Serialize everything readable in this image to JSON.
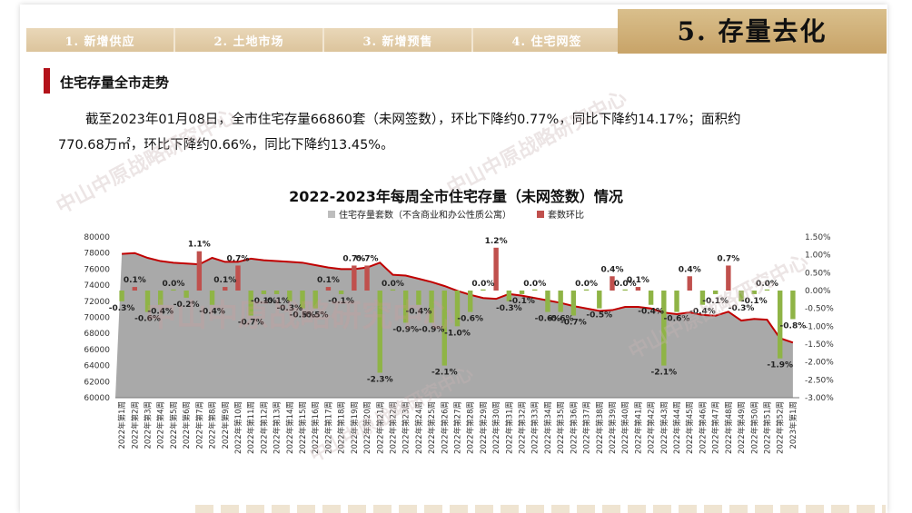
{
  "nav": {
    "tabs": [
      "1. 新增供应",
      "2. 土地市场",
      "3. 新增预售",
      "4. 住宅网签"
    ],
    "active": "5. 存量去化"
  },
  "section_title": "住宅存量全市走势",
  "summary_line1": "截至2023年01月08日，全市住宅存量66860套（未网签数），环比下降约0.77%，同比下降约14.17%；面积约",
  "summary_line2": "770.68万㎡，环比下降约0.66%，同比下降约13.45%。",
  "watermark_text": "中山中原战略研究中心",
  "colors": {
    "bar": "#8fb446",
    "marker": "#c0504d",
    "area": "#a9a9a9",
    "line": "#c00000",
    "accent": "#b3121a"
  },
  "chart_data": {
    "type": "bar",
    "title": "2022-2023年每周全市住宅存量（未网签数）情况",
    "legend": [
      "住宅存量套数（不含商业和办公性质公寓）",
      "套数环比"
    ],
    "y_left": {
      "min": 60000,
      "max": 80000,
      "step": 2000,
      "ticks": [
        "60000",
        "62000",
        "64000",
        "66000",
        "68000",
        "70000",
        "72000",
        "74000",
        "76000",
        "78000",
        "80000"
      ]
    },
    "y_right": {
      "min": -3.0,
      "max": 1.5,
      "step": 0.5,
      "ticks": [
        "-3.00%",
        "-2.50%",
        "-2.00%",
        "-1.50%",
        "-1.00%",
        "-0.50%",
        "0.00%",
        "0.50%",
        "1.00%",
        "1.50%"
      ]
    },
    "categories": [
      "2022年第1周",
      "2022年第2周",
      "2022年第3周",
      "2022年第4周",
      "2022年第5周",
      "2022年第6周",
      "2022年第7周",
      "2022年第8周",
      "2022年第9周",
      "2022年第10周",
      "2022年第11周",
      "2022年第12周",
      "2022年第13周",
      "2022年第14周",
      "2022年第15周",
      "2022年第16周",
      "2022年第17周",
      "2022年第18周",
      "2022年第19周",
      "2022年第20周",
      "2022年第21周",
      "2022年第22周",
      "2022年第23周",
      "2022年第24周",
      "2022年第25周",
      "2022年第26周",
      "2022年第27周",
      "2022年第28周",
      "2022年第29周",
      "2022年第30周",
      "2022年第31周",
      "2022年第32周",
      "2022年第33周",
      "2022年第34周",
      "2022年第35周",
      "2022年第36周",
      "2022年第37周",
      "2022年第38周",
      "2022年第39周",
      "2022年第40周",
      "2022年第41周",
      "2022年第42周",
      "2022年第43周",
      "2022年第44周",
      "2022年第45周",
      "2022年第46周",
      "2022年第47周",
      "2022年第48周",
      "2022年第49周",
      "2022年第50周",
      "2022年第51周",
      "2022年第52周",
      "2023年第1周"
    ],
    "stock": [
      77900,
      78000,
      77400,
      77000,
      76800,
      76700,
      76600,
      77400,
      76900,
      76900,
      77300,
      77100,
      77000,
      76900,
      76800,
      76500,
      76200,
      76000,
      76000,
      76200,
      76800,
      75300,
      75200,
      74800,
      74400,
      73900,
      73300,
      72800,
      72400,
      72300,
      72900,
      72700,
      72400,
      72100,
      71800,
      71400,
      71100,
      70800,
      70900,
      71300,
      71300,
      71100,
      70600,
      70400,
      70600,
      70300,
      70200,
      70700,
      69600,
      69800,
      69700,
      67400,
      66860
    ],
    "mom_pct": [
      -0.3,
      0.1,
      -0.6,
      -0.4,
      0.0,
      -0.2,
      1.1,
      -0.4,
      0.1,
      0.7,
      -0.7,
      -0.1,
      -0.1,
      -0.3,
      -0.5,
      -0.5,
      0.1,
      -0.1,
      0.7,
      0.7,
      -2.3,
      0.0,
      -0.9,
      -0.4,
      -0.9,
      -2.1,
      -1.0,
      -0.6,
      0.0,
      1.2,
      -0.3,
      -0.1,
      0.0,
      -0.6,
      -0.6,
      -0.7,
      0.0,
      -0.5,
      0.4,
      0.0,
      0.1,
      -0.4,
      -2.1,
      -0.6,
      0.4,
      -0.4,
      -0.1,
      0.7,
      -0.3,
      -0.1,
      0.0,
      -1.9,
      -0.8
    ],
    "mom_labels": [
      "-0.3%",
      "0.1%",
      "-0.6%",
      "-0.4%",
      "0.0%",
      "-0.2%",
      "1.1%",
      "-0.4%",
      "0.1%",
      "0.7%",
      "-0.7%",
      "-0.1%",
      "-0.1%",
      "-0.3%",
      "-0.5%",
      "-0.5%",
      "0.1%",
      "-0.1%",
      "0.7%",
      "0.7%",
      "-2.3%",
      "0.0%",
      "-0.9%",
      "-0.4%",
      "-0.9%",
      "-2.1%",
      "-1.0%",
      "-0.6%",
      "0.0%",
      "1.2%",
      "-0.3%",
      "-0.1%",
      "0.0%",
      "-0.6%",
      "-0.6%",
      "-0.7%",
      "0.0%",
      "-0.5%",
      "0.4%",
      "0.0%",
      "0.1%",
      "-0.4%",
      "-2.1%",
      "-0.6%",
      "0.4%",
      "-0.4%",
      "-0.1%",
      "0.7%",
      "-0.3%",
      "-0.1%",
      "0.0%",
      "-1.9%",
      "-0.8%"
    ]
  }
}
